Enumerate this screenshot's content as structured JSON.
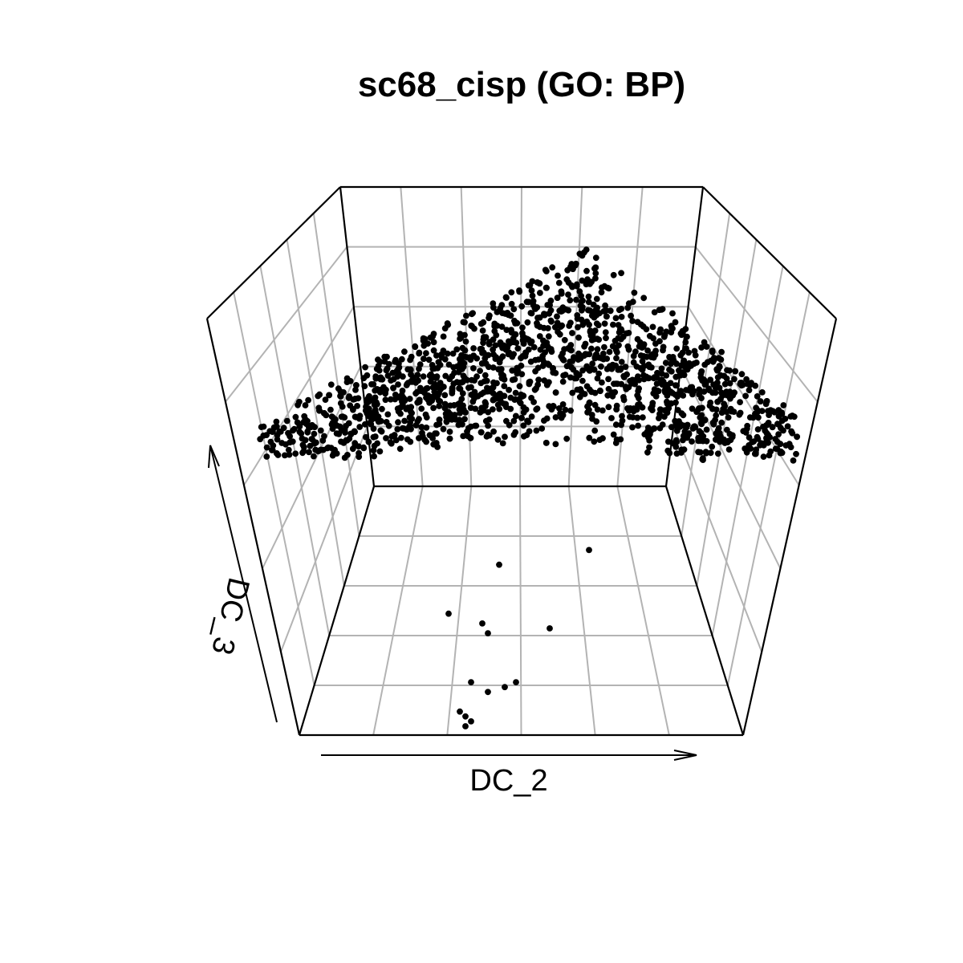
{
  "chart_data": {
    "type": "scatter",
    "subtype": "3d-perspective",
    "title": "sc68_cisp (GO: BP)",
    "xlabel": "DC_2",
    "ylabel": "DC_3",
    "grid": true,
    "point_color": "#000000",
    "grid_color": "#b3b3b3",
    "box_color": "#000000",
    "approx_point_count": 1700,
    "outlier_points": [
      {
        "DC_2": 0.46,
        "DC_3": 0.33
      },
      {
        "DC_2": 0.62,
        "DC_3": 0.36
      },
      {
        "DC_2": 0.37,
        "DC_3": 0.23
      },
      {
        "DC_2": 0.43,
        "DC_3": 0.21
      },
      {
        "DC_2": 0.44,
        "DC_3": 0.19
      },
      {
        "DC_2": 0.55,
        "DC_3": 0.2
      },
      {
        "DC_2": 0.41,
        "DC_3": 0.09
      },
      {
        "DC_2": 0.44,
        "DC_3": 0.07
      },
      {
        "DC_2": 0.47,
        "DC_3": 0.08
      },
      {
        "DC_2": 0.49,
        "DC_3": 0.09
      },
      {
        "DC_2": 0.39,
        "DC_3": 0.03
      },
      {
        "DC_2": 0.4,
        "DC_3": 0.02
      },
      {
        "DC_2": 0.4,
        "DC_3": 0.0
      },
      {
        "DC_2": 0.41,
        "DC_3": 0.01
      }
    ]
  }
}
